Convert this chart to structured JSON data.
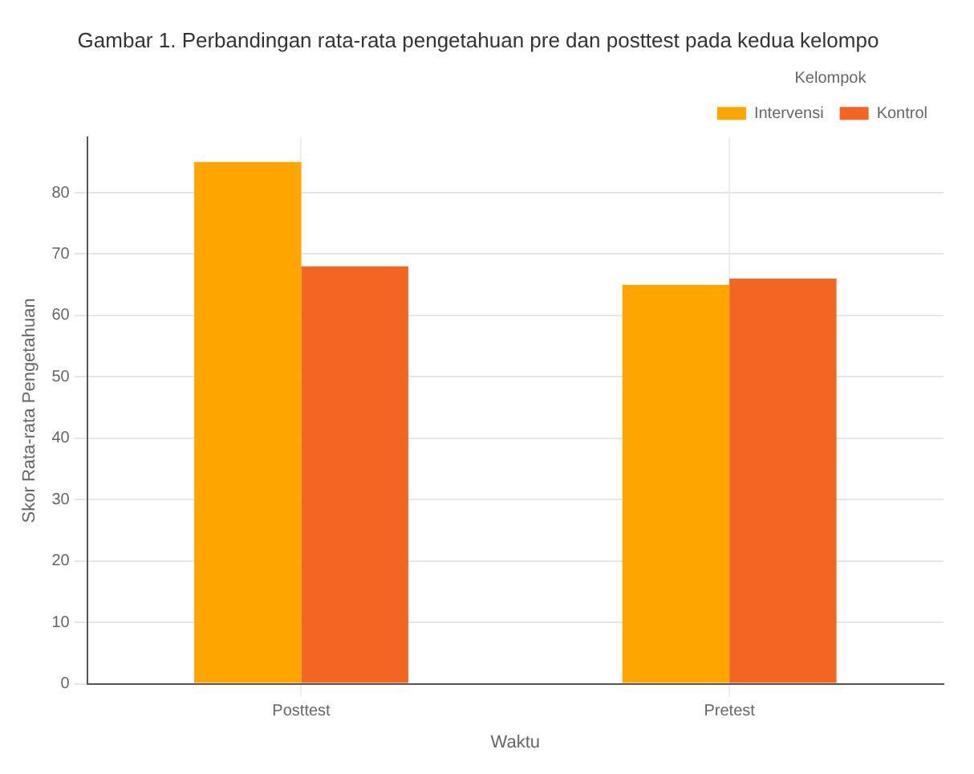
{
  "chart_data": {
    "type": "bar",
    "title": "Gambar 1. Perbandingan rata-rata pengetahuan pre dan posttest pada kedua kelompo",
    "xlabel": "Waktu",
    "ylabel": "Skor Rata-rata Pengetahuan",
    "legend_title": "Kelompok",
    "categories": [
      "Posttest",
      "Pretest"
    ],
    "series": [
      {
        "name": "Intervensi",
        "color": "#ffa500",
        "values": [
          85,
          65
        ]
      },
      {
        "name": "Kontrol",
        "color": "#f26522",
        "values": [
          68,
          66
        ]
      }
    ],
    "ylim": [
      0,
      89
    ],
    "yticks": [
      0,
      10,
      20,
      30,
      40,
      50,
      60,
      70,
      80
    ],
    "grid": true,
    "legend": "top right"
  }
}
